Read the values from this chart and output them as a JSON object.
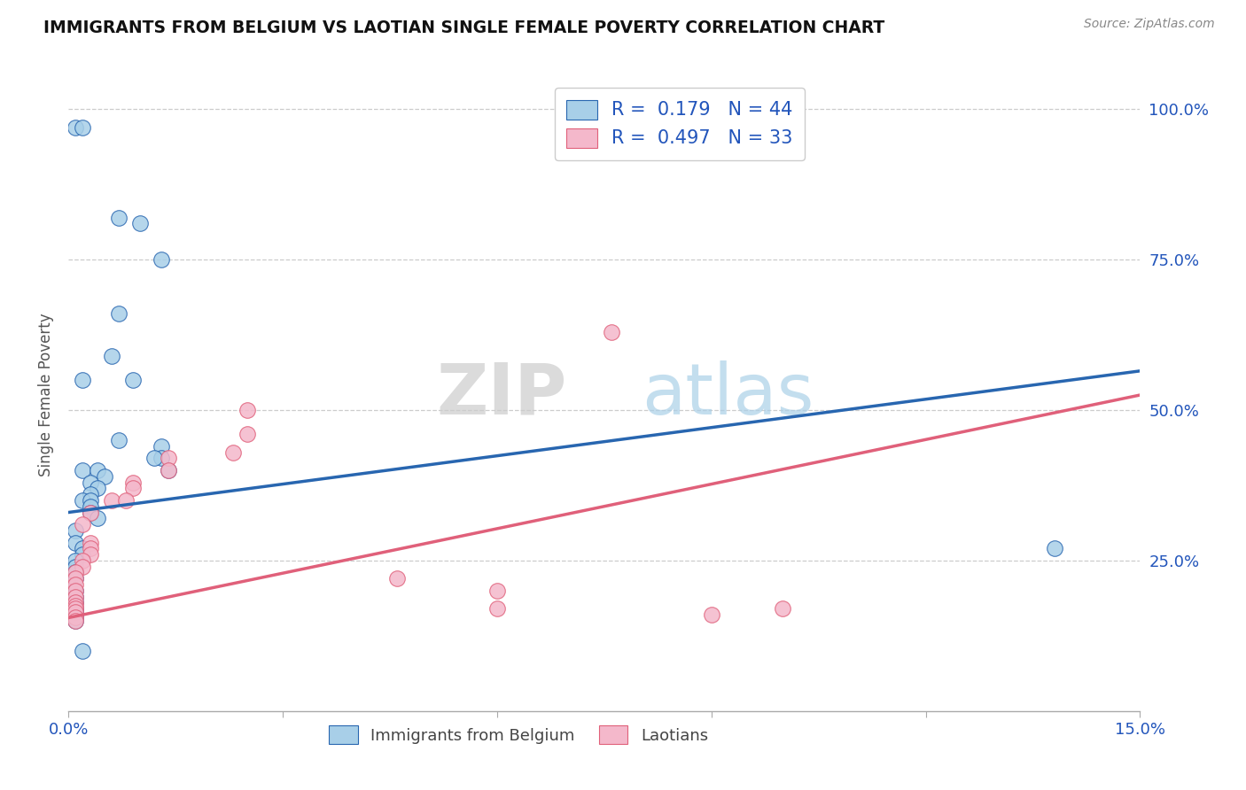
{
  "title": "IMMIGRANTS FROM BELGIUM VS LAOTIAN SINGLE FEMALE POVERTY CORRELATION CHART",
  "source": "Source: ZipAtlas.com",
  "ylabel": "Single Female Poverty",
  "xlim": [
    0.0,
    0.15
  ],
  "ylim": [
    0.0,
    1.05
  ],
  "ytick_labels": [
    "25.0%",
    "50.0%",
    "75.0%",
    "100.0%"
  ],
  "ytick_values": [
    0.25,
    0.5,
    0.75,
    1.0
  ],
  "legend_r1": "R =  0.179",
  "legend_n1": "N = 44",
  "legend_r2": "R =  0.497",
  "legend_n2": "N = 33",
  "blue_color": "#a8cfe8",
  "pink_color": "#f4b8cb",
  "line_blue": "#2866b0",
  "line_pink": "#e0607a",
  "watermark_zip": "ZIP",
  "watermark_atlas": "atlas",
  "blue_scatter": [
    [
      0.001,
      0.97
    ],
    [
      0.002,
      0.97
    ],
    [
      0.007,
      0.82
    ],
    [
      0.01,
      0.81
    ],
    [
      0.013,
      0.75
    ],
    [
      0.007,
      0.66
    ],
    [
      0.006,
      0.59
    ],
    [
      0.002,
      0.55
    ],
    [
      0.009,
      0.55
    ],
    [
      0.007,
      0.45
    ],
    [
      0.013,
      0.44
    ],
    [
      0.013,
      0.42
    ],
    [
      0.014,
      0.4
    ],
    [
      0.012,
      0.42
    ],
    [
      0.002,
      0.4
    ],
    [
      0.004,
      0.4
    ],
    [
      0.005,
      0.39
    ],
    [
      0.003,
      0.38
    ],
    [
      0.004,
      0.37
    ],
    [
      0.003,
      0.36
    ],
    [
      0.002,
      0.35
    ],
    [
      0.003,
      0.35
    ],
    [
      0.003,
      0.34
    ],
    [
      0.003,
      0.33
    ],
    [
      0.004,
      0.32
    ],
    [
      0.001,
      0.3
    ],
    [
      0.001,
      0.28
    ],
    [
      0.002,
      0.27
    ],
    [
      0.002,
      0.26
    ],
    [
      0.001,
      0.25
    ],
    [
      0.001,
      0.24
    ],
    [
      0.001,
      0.23
    ],
    [
      0.001,
      0.22
    ],
    [
      0.0,
      0.21
    ],
    [
      0.001,
      0.2
    ],
    [
      0.001,
      0.19
    ],
    [
      0.001,
      0.18
    ],
    [
      0.001,
      0.17
    ],
    [
      0.001,
      0.165
    ],
    [
      0.001,
      0.16
    ],
    [
      0.001,
      0.155
    ],
    [
      0.001,
      0.15
    ],
    [
      0.138,
      0.27
    ],
    [
      0.002,
      0.1
    ]
  ],
  "pink_scatter": [
    [
      0.076,
      0.63
    ],
    [
      0.025,
      0.5
    ],
    [
      0.025,
      0.46
    ],
    [
      0.023,
      0.43
    ],
    [
      0.014,
      0.42
    ],
    [
      0.014,
      0.4
    ],
    [
      0.009,
      0.38
    ],
    [
      0.009,
      0.37
    ],
    [
      0.006,
      0.35
    ],
    [
      0.008,
      0.35
    ],
    [
      0.003,
      0.33
    ],
    [
      0.002,
      0.31
    ],
    [
      0.003,
      0.28
    ],
    [
      0.003,
      0.27
    ],
    [
      0.003,
      0.26
    ],
    [
      0.002,
      0.25
    ],
    [
      0.002,
      0.24
    ],
    [
      0.001,
      0.23
    ],
    [
      0.001,
      0.22
    ],
    [
      0.001,
      0.21
    ],
    [
      0.001,
      0.2
    ],
    [
      0.001,
      0.19
    ],
    [
      0.001,
      0.18
    ],
    [
      0.001,
      0.175
    ],
    [
      0.001,
      0.17
    ],
    [
      0.001,
      0.165
    ],
    [
      0.001,
      0.155
    ],
    [
      0.001,
      0.15
    ],
    [
      0.06,
      0.2
    ],
    [
      0.06,
      0.17
    ],
    [
      0.09,
      0.16
    ],
    [
      0.1,
      0.17
    ],
    [
      0.046,
      0.22
    ]
  ],
  "blue_line_x": [
    0.0,
    0.15
  ],
  "blue_line_y": [
    0.33,
    0.565
  ],
  "pink_line_x": [
    0.0,
    0.15
  ],
  "pink_line_y": [
    0.155,
    0.525
  ]
}
